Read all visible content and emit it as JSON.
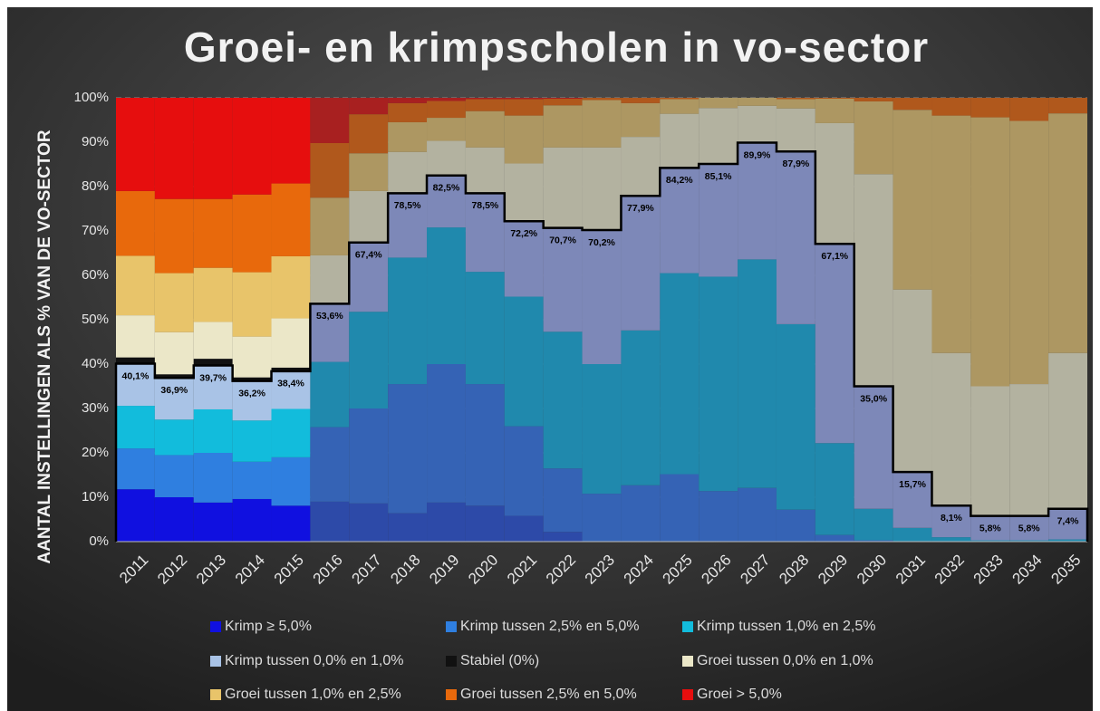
{
  "chart_data": {
    "type": "stacked_bar",
    "title": "Groei- en krimpscholen in vo-sector",
    "y_label": "AANTAL INSTELLINGEN ALS % VAN DE VO-SECTOR",
    "categories": [
      "2011",
      "2012",
      "2013",
      "2014",
      "2015",
      "2016",
      "2017",
      "2018",
      "2019",
      "2020",
      "2021",
      "2022",
      "2023",
      "2024",
      "2025",
      "2026",
      "2027",
      "2028",
      "2029",
      "2030",
      "2031",
      "2032",
      "2033",
      "2034",
      "2035"
    ],
    "faded_from": "2016",
    "ylim": [
      0,
      100
    ],
    "yticks": [
      {
        "value": 0,
        "label": "0%"
      },
      {
        "value": 10,
        "label": "10%"
      },
      {
        "value": 20,
        "label": "20%"
      },
      {
        "value": 30,
        "label": "30%"
      },
      {
        "value": 40,
        "label": "40%"
      },
      {
        "value": 50,
        "label": "50%"
      },
      {
        "value": 60,
        "label": "60%"
      },
      {
        "value": 70,
        "label": "70%"
      },
      {
        "value": 80,
        "label": "80%"
      },
      {
        "value": 90,
        "label": "90%"
      },
      {
        "value": 100,
        "label": "100%"
      }
    ],
    "grid": true,
    "series": [
      {
        "name": "Krimp ≥ 5,0%",
        "color": "#1010e0",
        "faded_color": "#2d4aa8",
        "values": [
          11.8,
          10,
          8.8,
          9.6,
          8.1,
          9,
          8.6,
          6.4,
          8.8,
          8.1,
          5.8,
          2.2,
          0,
          0,
          0,
          0,
          0,
          0,
          0,
          0,
          0,
          0,
          0,
          0,
          0
        ]
      },
      {
        "name": "Krimp tussen 2,5% en 5,0%",
        "color": "#2f7fe0",
        "faded_color": "#3563b5",
        "values": [
          9.2,
          9.5,
          11.2,
          8.4,
          10.9,
          16.8,
          21.4,
          29.1,
          31.2,
          27.4,
          20.2,
          14.3,
          10.8,
          12.7,
          15.2,
          11.4,
          12.1,
          7.2,
          1.5,
          0.3,
          0,
          0,
          0,
          0,
          0
        ]
      },
      {
        "name": "Krimp tussen 1,0% en 2,5%",
        "color": "#12bcdc",
        "faded_color": "#2089ad",
        "values": [
          9.6,
          8,
          9.8,
          9.3,
          10.9,
          14.7,
          21.8,
          28.5,
          30.8,
          25.3,
          29.2,
          30.8,
          29.2,
          34.9,
          45.3,
          48.3,
          51.5,
          41.8,
          20.7,
          7.1,
          3.1,
          1,
          0.3,
          0.3,
          0.5
        ]
      },
      {
        "name": "Krimp tussen 0,0% en 1,0%",
        "color": "#a9c3e6",
        "faded_color": "#7d88b8",
        "values": [
          9.5,
          9.4,
          9.9,
          8.9,
          8.5,
          13.1,
          15.6,
          14.5,
          11.7,
          17.7,
          17,
          23.4,
          30.2,
          30.3,
          23.7,
          25.4,
          26.3,
          38.9,
          44.9,
          27.6,
          12.6,
          7.1,
          5.5,
          5.5,
          6.9
        ]
      },
      {
        "name": "Stabiel (0%)",
        "color": "#111111",
        "faded_color": "#333333",
        "values": [
          1.4,
          0.8,
          1.5,
          0.8,
          0.8,
          0,
          0,
          0,
          0,
          0,
          0,
          0,
          0,
          0,
          0,
          0,
          0,
          0,
          0,
          0,
          0,
          0,
          0,
          0,
          0
        ]
      },
      {
        "name": "Groei tussen 0,0% en 1,0%",
        "color": "#ebe7c8",
        "faded_color": "#b3b2a0",
        "values": [
          9.5,
          9.5,
          8.3,
          9.2,
          11.1,
          10.9,
          11.6,
          9.3,
          7.8,
          10.3,
          13,
          18.1,
          18.6,
          13.3,
          12.2,
          12.6,
          8.3,
          9.7,
          27.2,
          47.8,
          41.1,
          34.4,
          29.2,
          29.7,
          35.1
        ]
      },
      {
        "name": "Groei tussen 1,0% en 2,5%",
        "color": "#e8c46a",
        "faded_color": "#ad9762",
        "values": [
          13.4,
          13.3,
          12.2,
          14.5,
          14,
          13,
          8.5,
          6.7,
          5.2,
          8.2,
          10.8,
          9.5,
          10.7,
          7.6,
          3.3,
          2.3,
          1.8,
          2.1,
          5.5,
          16.4,
          40.5,
          53.5,
          60.6,
          59.3,
          54
        ]
      },
      {
        "name": "Groei tussen 2,5% en 5,0%",
        "color": "#e8690c",
        "faded_color": "#b0581c",
        "values": [
          14.6,
          16.7,
          15.5,
          17.5,
          16.4,
          12.3,
          8.8,
          4.3,
          3.8,
          2.7,
          3.7,
          1.5,
          0.5,
          1.2,
          0.3,
          0,
          0,
          0.3,
          0.2,
          0.8,
          2.7,
          4,
          4.4,
          5.2,
          3.5
        ]
      },
      {
        "name": "Groei > 5,0%",
        "color": "#e60e0e",
        "faded_color": "#a82020",
        "values": [
          21,
          22.8,
          22.8,
          21.8,
          19.3,
          10.2,
          3.7,
          1.2,
          0.7,
          0.3,
          0.3,
          0.2,
          0,
          0,
          0,
          0,
          0,
          0,
          0,
          0,
          0,
          0,
          0,
          0,
          0
        ]
      }
    ],
    "krimp_totals": {
      "values": [
        40.1,
        36.9,
        39.7,
        36.2,
        38.4,
        53.6,
        67.4,
        78.5,
        82.5,
        78.5,
        72.2,
        70.7,
        70.2,
        77.9,
        84.2,
        85.1,
        89.9,
        87.9,
        67.1,
        35.0,
        15.7,
        8.1,
        5.8,
        5.8,
        7.4
      ],
      "value_labels": [
        "40,1%",
        "36,9%",
        "39,7%",
        "36,2%",
        "38,4%",
        "53,6%",
        "67,4%",
        "78,5%",
        "82,5%",
        "78,5%",
        "72,2%",
        "70,7%",
        "70,2%",
        "77,9%",
        "84,2%",
        "85,1%",
        "89,9%",
        "87,9%",
        "67,1%",
        "35,0%",
        "15,7%",
        "8,1%",
        "5,8%",
        "5,8%",
        "7,4%"
      ]
    }
  }
}
